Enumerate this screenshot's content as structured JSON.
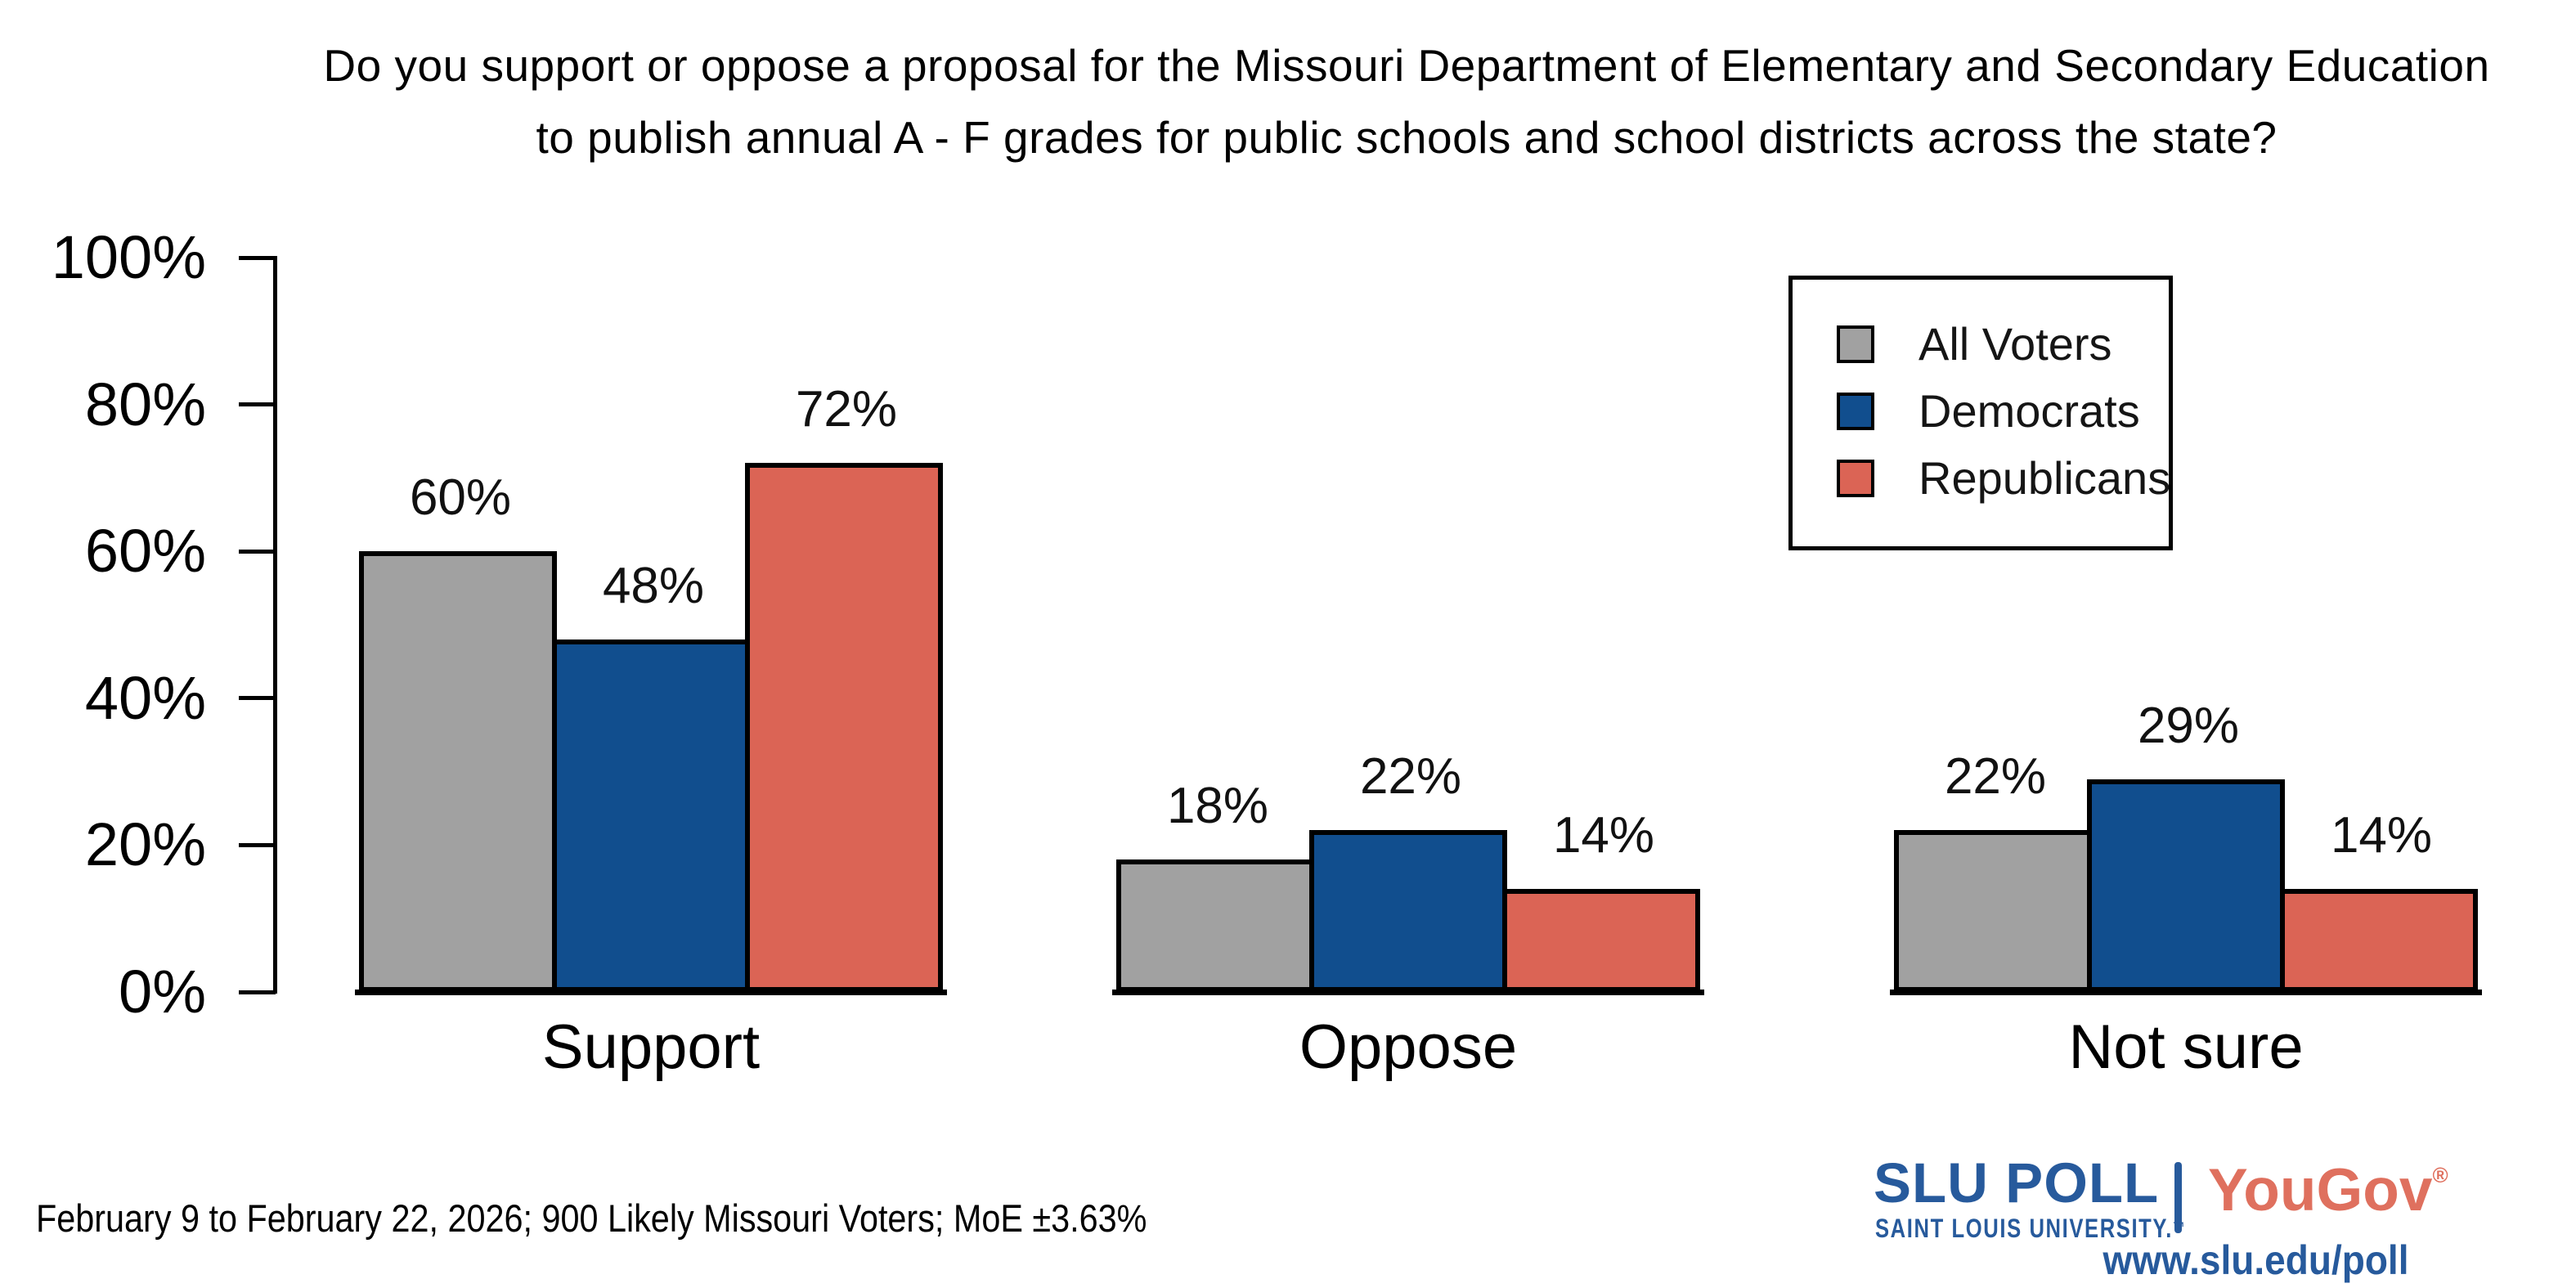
{
  "title": {
    "line1": "Do you support or oppose a proposal for the Missouri Department of Elementary and Secondary Education",
    "line2": "to publish annual A - F grades for public schools and school districts across the state?"
  },
  "chart_data": {
    "type": "bar",
    "categories": [
      "Support",
      "Oppose",
      "Not sure"
    ],
    "series": [
      {
        "name": "All Voters",
        "color": "#a1a1a1",
        "values": [
          60,
          18,
          22
        ]
      },
      {
        "name": "Democrats",
        "color": "#114e8e",
        "values": [
          48,
          22,
          29
        ]
      },
      {
        "name": "Republicans",
        "color": "#db6455",
        "values": [
          72,
          14,
          14
        ]
      }
    ],
    "value_label_format": "{v}%",
    "ylabel": "",
    "xlabel": "",
    "ylim": [
      0,
      100
    ],
    "yticks": [
      {
        "value": 0,
        "label": "0%"
      },
      {
        "value": 20,
        "label": "20%"
      },
      {
        "value": 40,
        "label": "40%"
      },
      {
        "value": 60,
        "label": "60%"
      },
      {
        "value": 80,
        "label": "80%"
      },
      {
        "value": 100,
        "label": "100%"
      }
    ],
    "grid": false,
    "legend_position": "top-right",
    "bar_outline_color": "#000000"
  },
  "footer": {
    "note": "February 9 to February 22, 2026; 900 Likely Missouri Voters; MoE ±3.63%"
  },
  "branding": {
    "slu_poll": "SLU POLL",
    "slu_sub": "SAINT LOUIS UNIVERSITY.",
    "tm": "™",
    "yougov": "YouGov",
    "reg": "®",
    "url": "www.slu.edu/poll",
    "navy": "#275a9c",
    "salmon": "#df705e"
  }
}
